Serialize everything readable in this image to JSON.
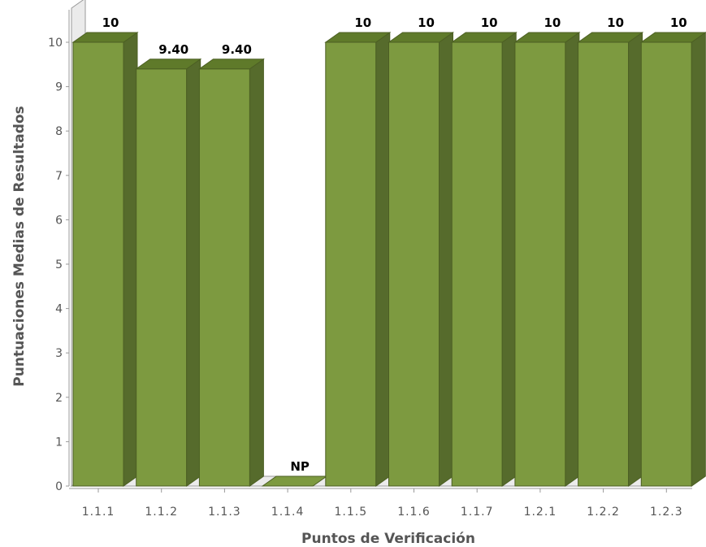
{
  "chart_data": {
    "type": "bar",
    "title": "",
    "xlabel": "Puntos de Verificación",
    "ylabel": "Puntuaciones Medias de Resultados",
    "ylim": [
      0,
      10
    ],
    "yticks": [
      "0",
      "1",
      "2",
      "3",
      "4",
      "5",
      "6",
      "7",
      "8",
      "9",
      "10"
    ],
    "categories": [
      "1.1.1",
      "1.1.2",
      "1.1.3",
      "1.1.4",
      "1.1.5",
      "1.1.6",
      "1.1.7",
      "1.2.1",
      "1.2.2",
      "1.2.3"
    ],
    "values": [
      10,
      9.4,
      9.4,
      0,
      10,
      10,
      10,
      10,
      10,
      10
    ],
    "value_labels": [
      "10",
      "9.40",
      "9.40",
      "NP",
      "10",
      "10",
      "10",
      "10",
      "10",
      "10"
    ],
    "grid": false,
    "legend": "none",
    "colors": {
      "bar_front": "#7d9a40",
      "bar_top": "#5f7a2a",
      "bar_side": "#566b2c",
      "bar_stroke": "#4c5f23",
      "wall": "#ebebeb",
      "axis": "#999999"
    }
  }
}
